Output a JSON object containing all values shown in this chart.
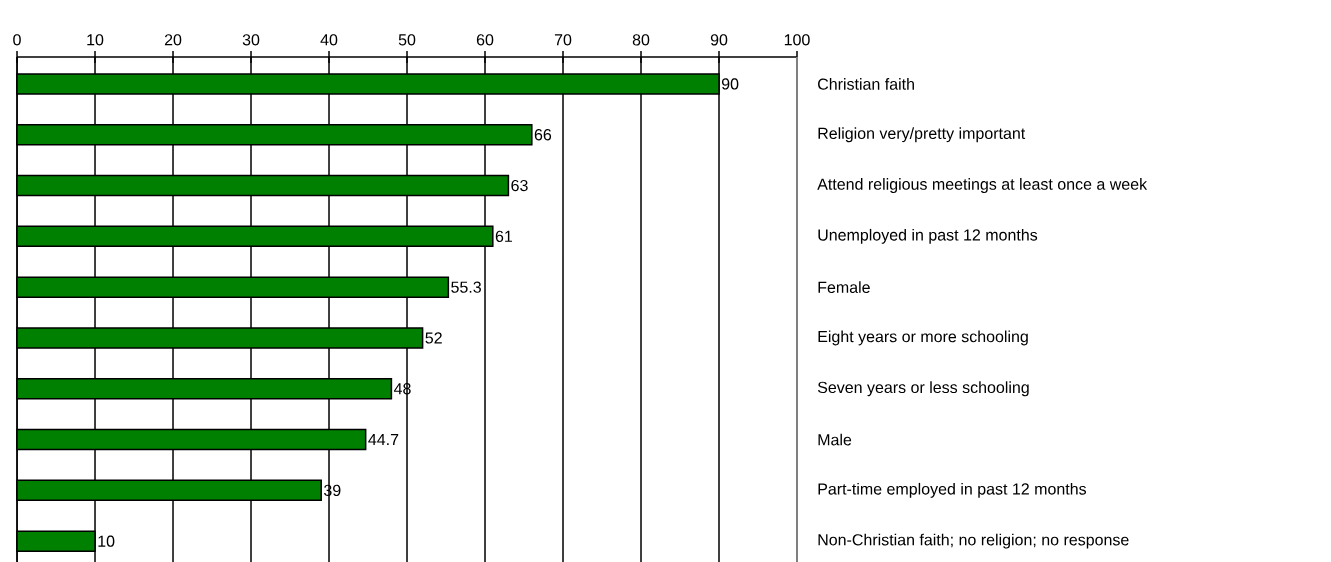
{
  "chart_data": {
    "type": "bar",
    "orientation": "horizontal",
    "categories": [
      "Christian faith",
      "Religion very/pretty important",
      "Attend religious meetings at least once a week",
      "Unemployed in past 12 months",
      "Female",
      "Eight years or more schooling",
      "Seven years or less schooling",
      "Male",
      "Part-time employed in past 12 months",
      "Non-Christian faith; no religion; no response"
    ],
    "values": [
      90,
      66,
      63,
      61,
      55.3,
      52,
      48,
      44.7,
      39,
      10
    ],
    "color": "#008000",
    "xlim": [
      0,
      100
    ],
    "xticks": [
      0,
      10,
      20,
      30,
      40,
      50,
      60,
      70,
      80,
      90,
      100
    ],
    "grid": "x",
    "data_labels": true
  }
}
